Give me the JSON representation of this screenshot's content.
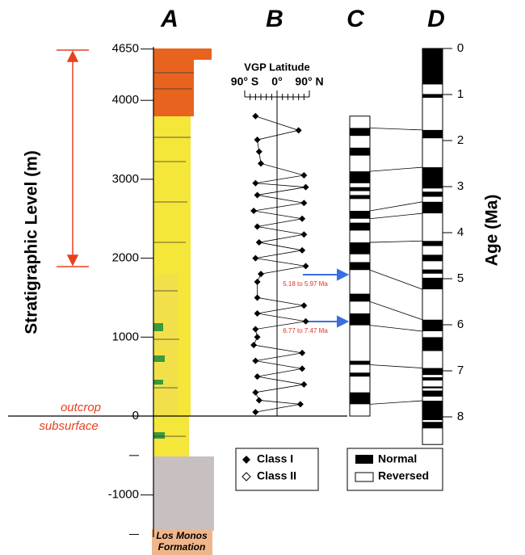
{
  "panels": [
    "A",
    "B",
    "C",
    "D"
  ],
  "left_axis": {
    "label": "Stratigraphic Level (m)",
    "ticks": [
      4650,
      4000,
      3000,
      2000,
      1000,
      0,
      -1000
    ],
    "minor_ticks": [
      -500,
      -1500
    ]
  },
  "right_axis": {
    "label": "Age (Ma)",
    "ticks": [
      0,
      1,
      2,
      3,
      4,
      5,
      6,
      7,
      8
    ]
  },
  "annotations": {
    "outcrop": "outcrop",
    "subsurface": "subsurface",
    "formation": "Los Monos Formation",
    "arrow_1": "5.18 to 5.97 Ma",
    "arrow_2": "6.77 to 7.47 Ma"
  },
  "vgp": {
    "title": "VGP Latitude",
    "ticks": [
      {
        "value": -90,
        "label": "90° S"
      },
      {
        "value": 0,
        "label": "0°"
      },
      {
        "value": 90,
        "label": "90° N"
      }
    ],
    "level": [
      3800,
      3620,
      3500,
      3350,
      3200,
      3050,
      2950,
      2900,
      2800,
      2700,
      2600,
      2500,
      2400,
      2300,
      2200,
      2100,
      2000,
      1900,
      1800,
      1700,
      1500,
      1400,
      1300,
      1200,
      1100,
      1000,
      900,
      800,
      700,
      600,
      500,
      400,
      300,
      200,
      150,
      50
    ],
    "latitude": [
      -60,
      60,
      -55,
      -50,
      -45,
      75,
      -60,
      80,
      -55,
      75,
      -65,
      70,
      -55,
      75,
      -50,
      70,
      -60,
      80,
      -45,
      -55,
      -55,
      75,
      -55,
      80,
      -60,
      -55,
      -65,
      70,
      -60,
      70,
      -55,
      75,
      -60,
      -50,
      65,
      -60
    ]
  },
  "legend_b": [
    "Class I",
    "Class II"
  ],
  "legend_c": [
    "Normal",
    "Reversed"
  ],
  "column_c": {
    "top": 3800,
    "normal_intervals": [
      [
        3650,
        3550
      ],
      [
        3400,
        3300
      ],
      [
        3100,
        2950
      ],
      [
        2900,
        2850
      ],
      [
        2800,
        2750
      ],
      [
        2600,
        2500
      ],
      [
        2450,
        2350
      ],
      [
        2200,
        2050
      ],
      [
        1950,
        1850
      ],
      [
        1550,
        1450
      ],
      [
        1300,
        1150
      ],
      [
        700,
        650
      ],
      [
        550,
        500
      ],
      [
        300,
        150
      ]
    ]
  },
  "column_d": {
    "bottom": 8.6,
    "normal_intervals": [
      [
        0,
        0.78
      ],
      [
        0.99,
        1.07
      ],
      [
        1.77,
        1.95
      ],
      [
        2.58,
        3.04
      ],
      [
        3.11,
        3.22
      ],
      [
        3.33,
        3.58
      ],
      [
        4.18,
        4.29
      ],
      [
        4.48,
        4.62
      ],
      [
        4.8,
        4.89
      ],
      [
        4.98,
        5.23
      ],
      [
        5.89,
        6.14
      ],
      [
        6.27,
        6.57
      ],
      [
        6.94,
        7.09
      ],
      [
        7.14,
        7.21
      ],
      [
        7.34,
        7.38
      ],
      [
        7.43,
        7.56
      ],
      [
        7.65,
        8.07
      ],
      [
        8.11,
        8.25
      ]
    ]
  },
  "correlations": [
    [
      3650,
      1.77
    ],
    [
      3100,
      2.58
    ],
    [
      2600,
      3.33
    ],
    [
      2500,
      3.58
    ],
    [
      2200,
      4.18
    ],
    [
      1850,
      5.23
    ],
    [
      1450,
      5.89
    ],
    [
      1150,
      6.14
    ],
    [
      650,
      6.94
    ],
    [
      150,
      7.65
    ]
  ]
}
